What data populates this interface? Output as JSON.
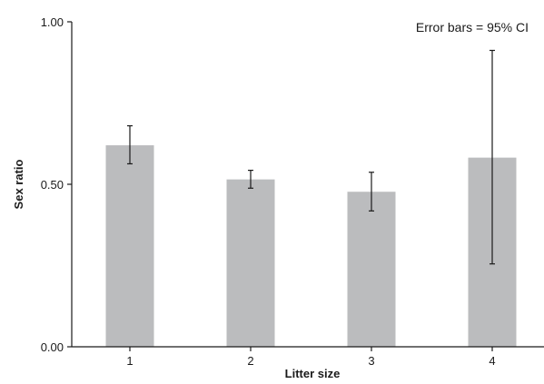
{
  "chart_data": {
    "type": "bar",
    "title": "",
    "xlabel": "Litter size",
    "ylabel": "Sex ratio",
    "annotation": "Error bars = 95% CI",
    "categories": [
      "1",
      "2",
      "3",
      "4"
    ],
    "values": [
      0.62,
      0.515,
      0.477,
      0.582
    ],
    "error_low": [
      0.563,
      0.488,
      0.418,
      0.255
    ],
    "error_high": [
      0.68,
      0.543,
      0.537,
      0.912
    ],
    "ylim": [
      0.0,
      1.0
    ],
    "yticks": [
      "0.00",
      "0.50",
      "1.00"
    ],
    "grid": false,
    "bar_color": "#bbbcbe"
  }
}
